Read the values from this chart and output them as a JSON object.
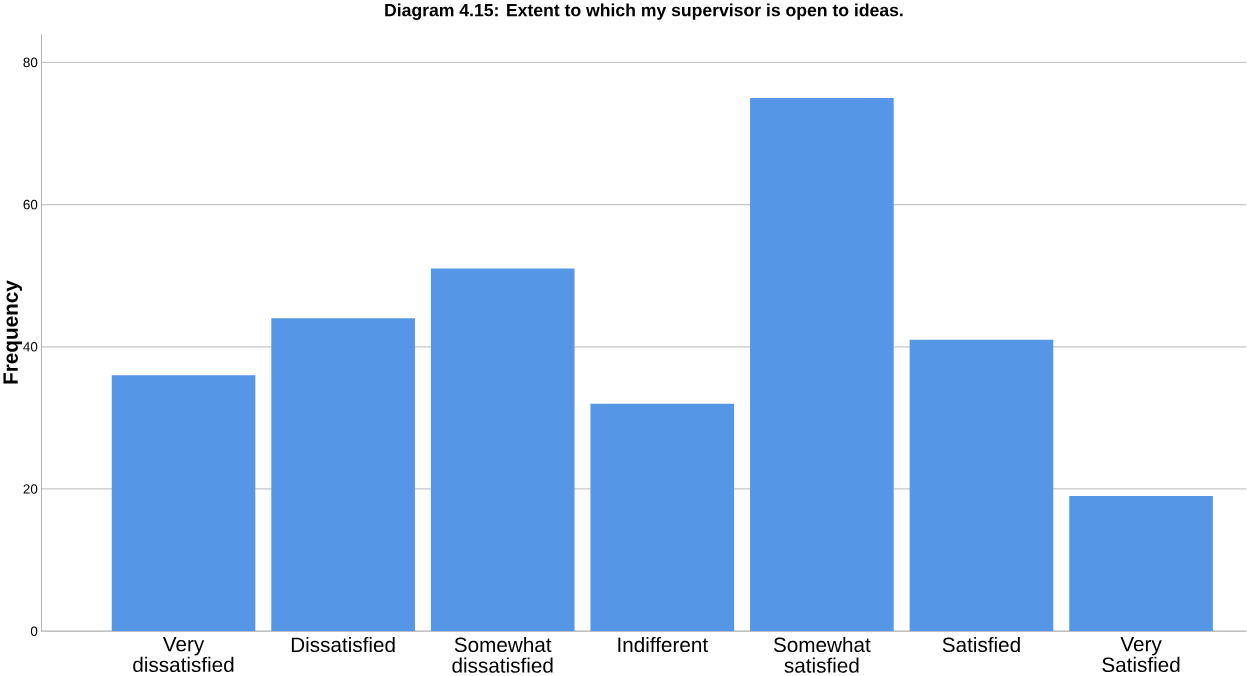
{
  "chart_data": {
    "type": "bar",
    "title": "Diagram 4.15: Extent to which my supervisor is open to ideas.",
    "ylabel": "Frequency",
    "categories": [
      "Very dissatisfied",
      "Dissatisfied",
      "Somewhat dissatisfied",
      "Indifferent",
      "Somewhat satisfied",
      "Satisfied",
      "Very Satisfied"
    ],
    "values": [
      36,
      44,
      51,
      32,
      75,
      41,
      19
    ],
    "color": "#5596e6",
    "ylim": [
      0,
      84
    ],
    "yticks": [
      0,
      20,
      40,
      60,
      80
    ],
    "grid": "y"
  }
}
